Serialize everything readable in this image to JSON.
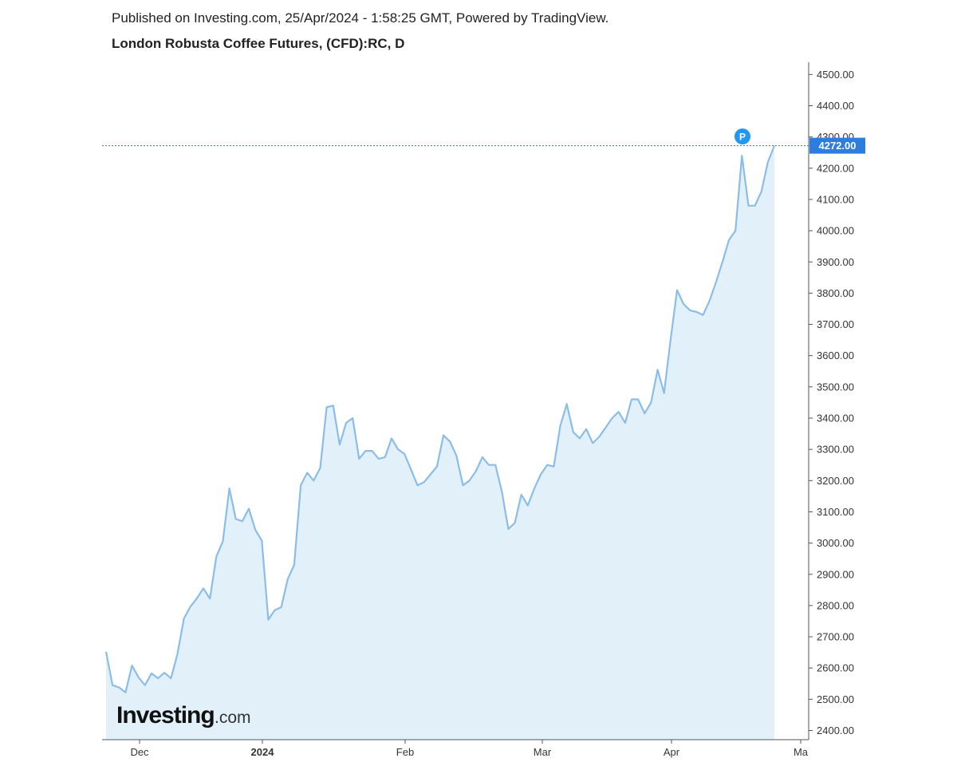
{
  "header": {
    "published": "Published on Investing.com, 25/Apr/2024 - 1:58:25 GMT, Powered by TradingView.",
    "title": "London Robusta Coffee Futures, (CFD):RC, D"
  },
  "logo": {
    "main": "Investing",
    "suffix": ".com"
  },
  "marker": {
    "label": "P"
  },
  "colors": {
    "line": "#8bbde8",
    "fill": "#e2f0fa",
    "last_price_bg": "#2b7de0",
    "marker": "#2196f3"
  },
  "chart_data": {
    "type": "area",
    "title": "London Robusta Coffee Futures, (CFD):RC, D",
    "ylim": [
      2370,
      4540
    ],
    "y_ticks": [
      "2400.00",
      "2500.00",
      "2600.00",
      "2700.00",
      "2800.00",
      "2900.00",
      "3000.00",
      "3100.00",
      "3200.00",
      "3300.00",
      "3400.00",
      "3500.00",
      "3600.00",
      "3700.00",
      "3800.00",
      "3900.00",
      "4000.00",
      "4100.00",
      "4200.00",
      "4300.00",
      "4400.00",
      "4500.00"
    ],
    "x_ticks": [
      {
        "label": "Dec",
        "bold": false
      },
      {
        "label": "2024",
        "bold": true
      },
      {
        "label": "Feb",
        "bold": false
      },
      {
        "label": "Mar",
        "bold": false
      },
      {
        "label": "Apr",
        "bold": false
      },
      {
        "label": "Ma",
        "bold": false
      }
    ],
    "last_price": "4272.00",
    "grid": false,
    "values": [
      2652,
      2545,
      2538,
      2522,
      2608,
      2570,
      2545,
      2583,
      2567,
      2585,
      2567,
      2645,
      2758,
      2797,
      2823,
      2855,
      2822,
      2957,
      3005,
      3175,
      3077,
      3070,
      3110,
      3043,
      3008,
      2755,
      2785,
      2795,
      2885,
      2930,
      3185,
      3225,
      3200,
      3240,
      3435,
      3440,
      3315,
      3385,
      3400,
      3270,
      3295,
      3295,
      3270,
      3275,
      3335,
      3300,
      3285,
      3235,
      3185,
      3195,
      3220,
      3245,
      3345,
      3325,
      3280,
      3185,
      3200,
      3230,
      3275,
      3250,
      3250,
      3165,
      3045,
      3065,
      3155,
      3120,
      3175,
      3220,
      3250,
      3245,
      3375,
      3445,
      3355,
      3335,
      3365,
      3320,
      3340,
      3370,
      3400,
      3420,
      3385,
      3460,
      3460,
      3415,
      3450,
      3555,
      3480,
      3650,
      3810,
      3765,
      3745,
      3740,
      3730,
      3775,
      3835,
      3900,
      3970,
      4000,
      4240,
      4080,
      4080,
      4125,
      4220,
      4272
    ]
  }
}
